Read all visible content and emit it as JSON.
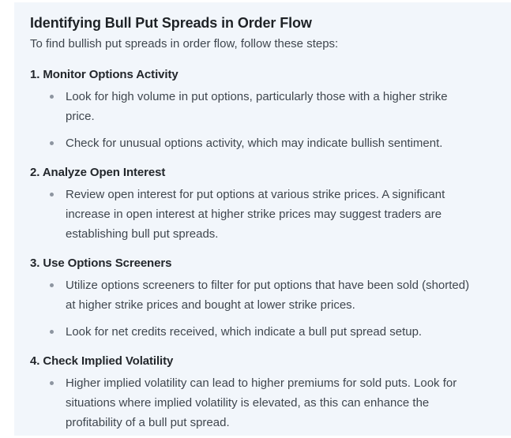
{
  "colors": {
    "page_bg": "#ffffff",
    "panel_bg": "#f2f6fb",
    "title_text": "#1e2226",
    "heading_text": "#23272c",
    "body_text": "#3f464e",
    "bullet_dot": "#8d95a0"
  },
  "panel": {
    "title": "Identifying Bull Put Spreads in Order Flow",
    "intro": "To find bullish put spreads in order flow, follow these steps:",
    "sections": [
      {
        "heading": "1. Monitor Options Activity",
        "bullets": [
          "Look for high volume in put options, particularly those with a higher strike price.",
          "Check for unusual options activity, which may indicate bullish sentiment."
        ]
      },
      {
        "heading": "2. Analyze Open Interest",
        "bullets": [
          "Review open interest for put options at various strike prices. A significant increase in open interest at higher strike prices may suggest traders are establishing bull put spreads."
        ]
      },
      {
        "heading": "3. Use Options Screeners",
        "bullets": [
          "Utilize options screeners to filter for put options that have been sold (shorted) at higher strike prices and bought at lower strike prices.",
          "Look for net credits received, which indicate a bull put spread setup."
        ]
      },
      {
        "heading": "4. Check Implied Volatility",
        "bullets": [
          "Higher implied volatility can lead to higher premiums for sold puts. Look for situations where implied volatility is elevated, as this can enhance the profitability of a bull put spread."
        ]
      }
    ]
  }
}
